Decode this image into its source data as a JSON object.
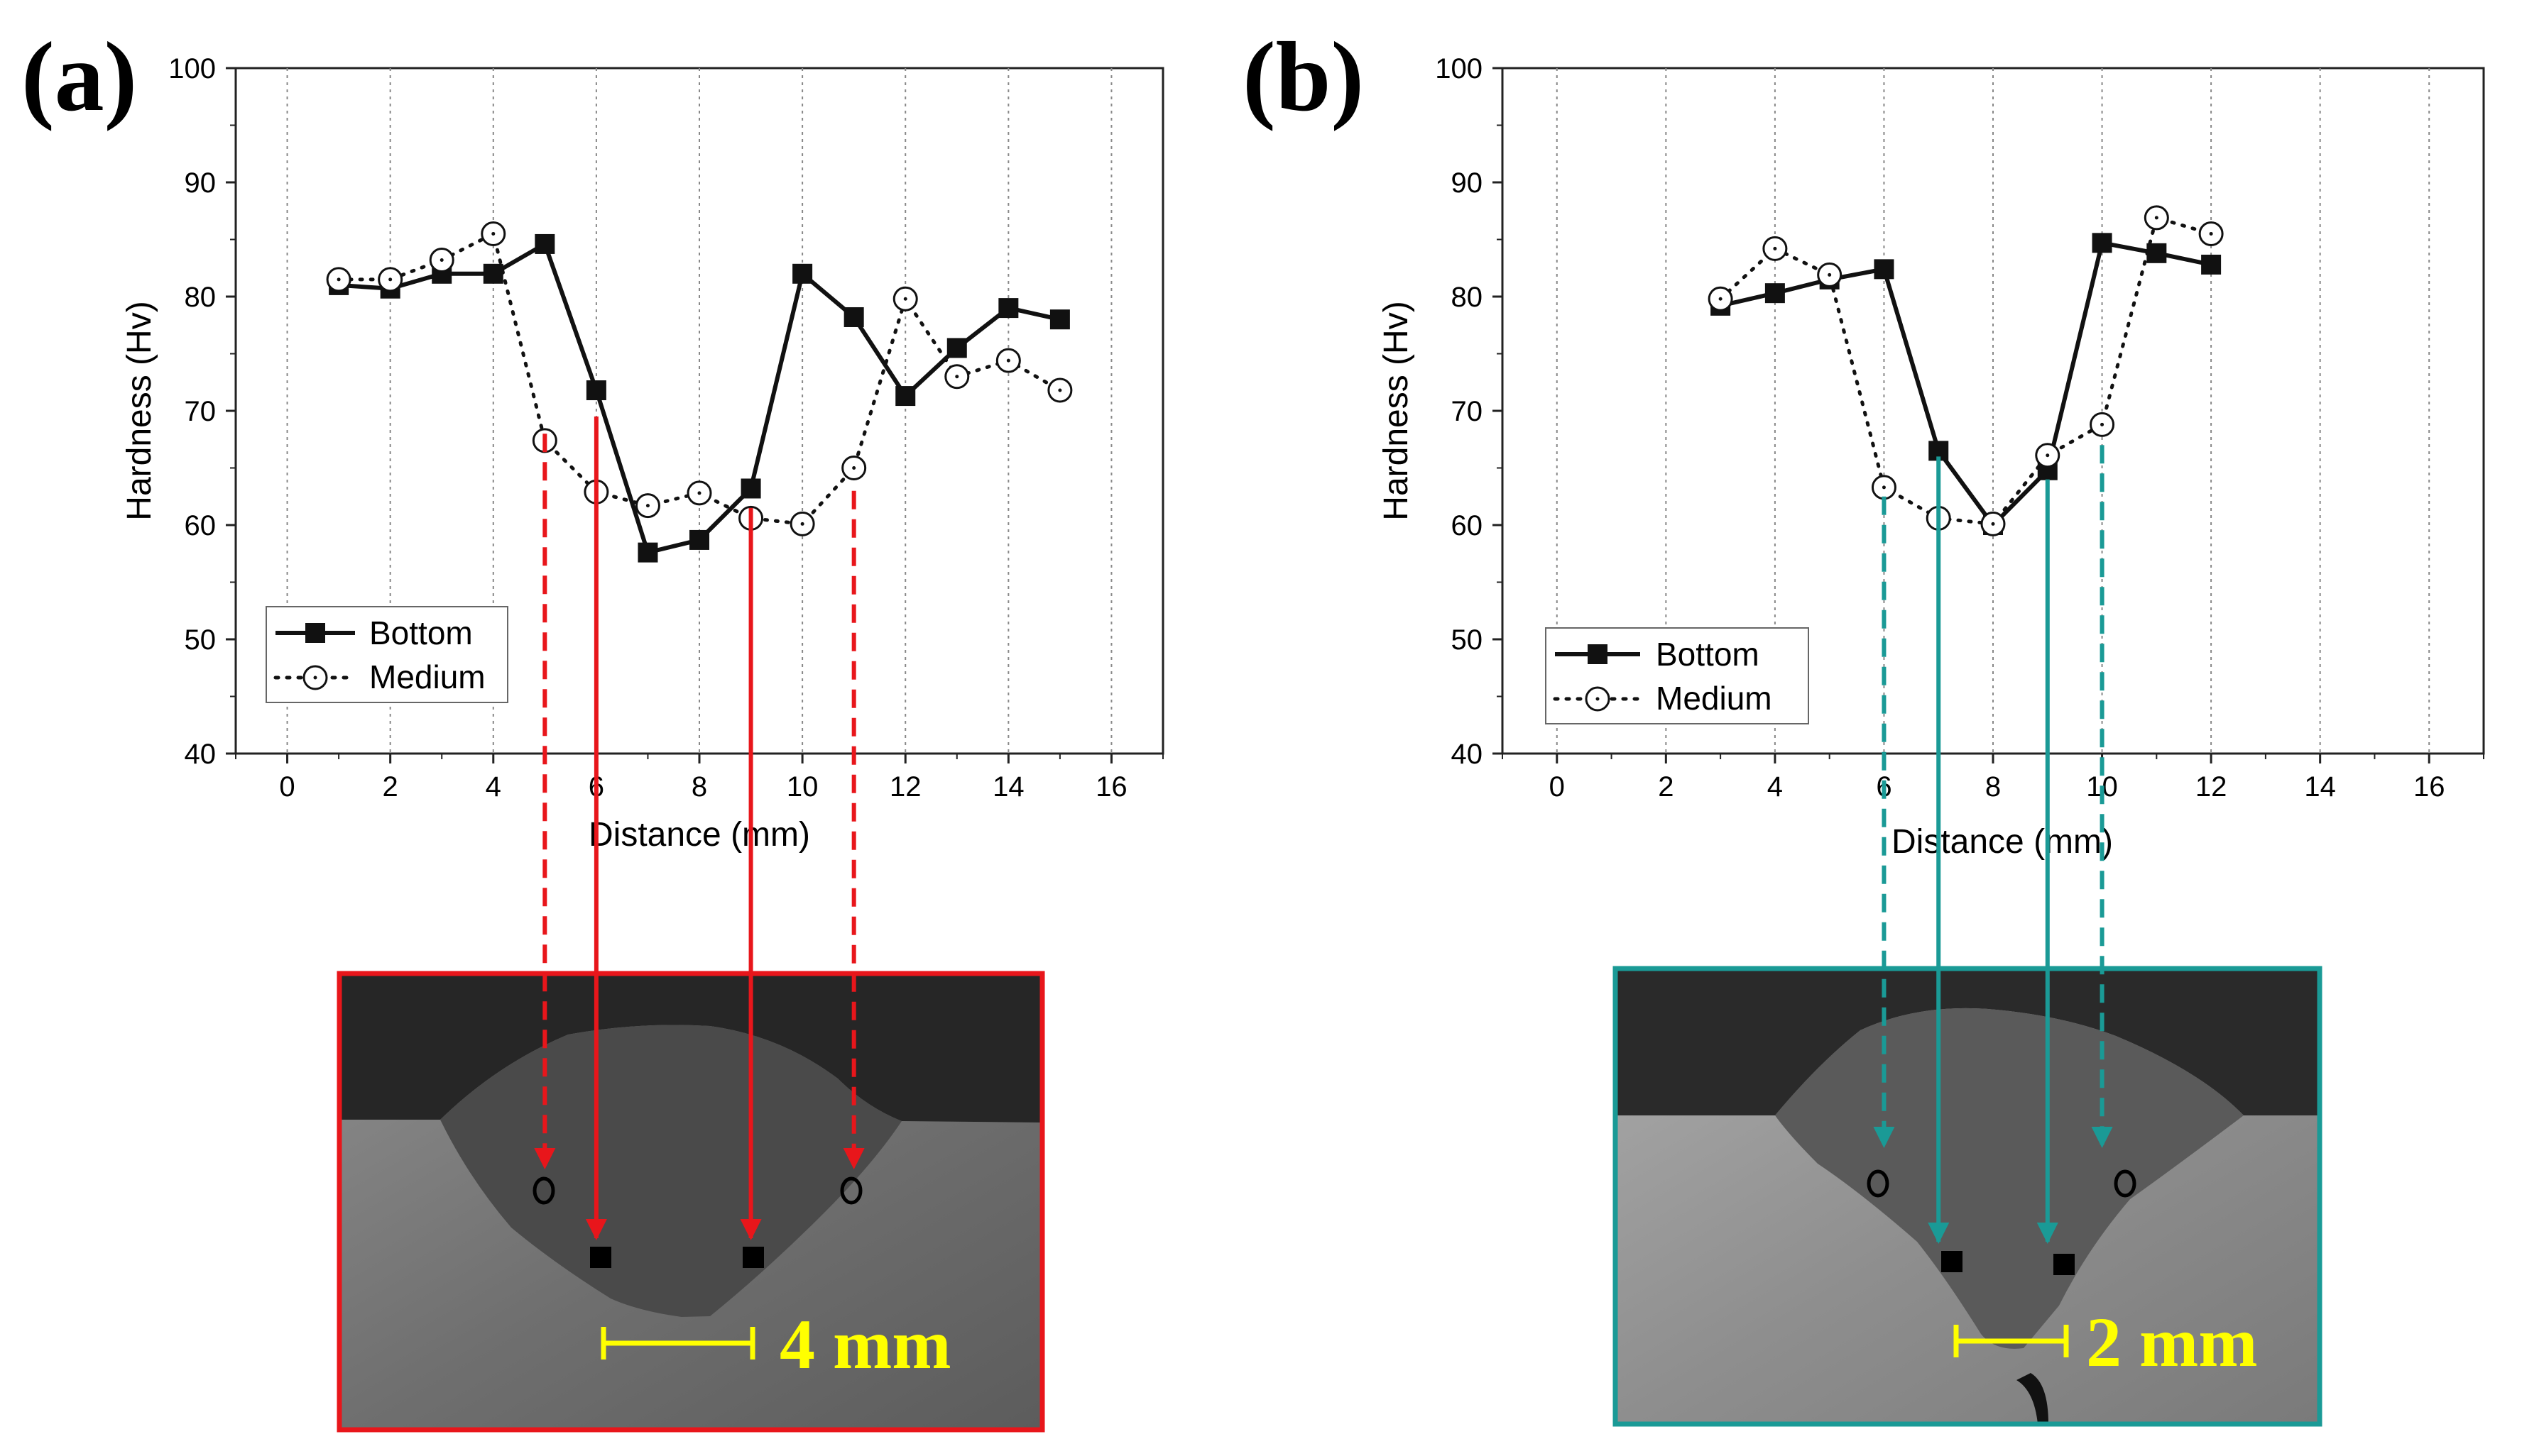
{
  "chart_data": [
    {
      "type": "line",
      "panel_label": "(a)",
      "xlabel": "Distance (mm)",
      "ylabel": "Hardness (Hv)",
      "xlim": [
        -1,
        17
      ],
      "ylim": [
        40,
        100
      ],
      "x_ticks": [
        0,
        2,
        4,
        6,
        8,
        10,
        12,
        14,
        16
      ],
      "y_ticks": [
        40,
        50,
        60,
        70,
        80,
        90,
        100
      ],
      "grid": "vertical dotted",
      "legend": {
        "placement": "bottom-left",
        "entries": [
          "Bottom",
          "Medium"
        ]
      },
      "series": [
        {
          "name": "Bottom",
          "marker": "filled-square",
          "line": "solid",
          "x": [
            1,
            2,
            3,
            4,
            5,
            6,
            7,
            8,
            9,
            10,
            11,
            12,
            13,
            14,
            15
          ],
          "y": [
            81.0,
            80.7,
            82.0,
            82.0,
            84.6,
            71.8,
            57.6,
            58.7,
            63.2,
            82.0,
            78.2,
            71.3,
            75.5,
            79.0,
            78.0
          ]
        },
        {
          "name": "Medium",
          "marker": "open-circle",
          "line": "dotted",
          "x": [
            1,
            2,
            3,
            4,
            5,
            6,
            7,
            8,
            9,
            10,
            11,
            12,
            13,
            14,
            15
          ],
          "y": [
            81.5,
            81.5,
            83.2,
            85.5,
            67.4,
            62.9,
            61.7,
            62.8,
            60.6,
            60.1,
            65.0,
            79.8,
            73.0,
            74.4,
            71.8
          ]
        }
      ],
      "arrows": [
        {
          "x": 5,
          "from_y": 68,
          "style": "dashed",
          "target": "circle"
        },
        {
          "x": 6,
          "from_y": 69.5,
          "style": "solid",
          "target": "square"
        },
        {
          "x": 9,
          "from_y": 61.5,
          "style": "solid",
          "target": "square"
        },
        {
          "x": 11,
          "from_y": 63,
          "style": "dashed",
          "target": "circle"
        }
      ],
      "micrograph": {
        "frame_color": "#e8161b",
        "scale_label": "4 mm"
      }
    },
    {
      "type": "line",
      "panel_label": "(b)",
      "xlabel": "Distance (mm)",
      "ylabel": "Hardness (Hv)",
      "xlim": [
        -1,
        17
      ],
      "ylim": [
        40,
        100
      ],
      "x_ticks": [
        0,
        2,
        4,
        6,
        8,
        10,
        12,
        14,
        16
      ],
      "y_ticks": [
        40,
        50,
        60,
        70,
        80,
        90,
        100
      ],
      "grid": "vertical dotted",
      "legend": {
        "placement": "bottom-left",
        "entries": [
          "Bottom",
          "Medium"
        ]
      },
      "series": [
        {
          "name": "Bottom",
          "marker": "filled-square",
          "line": "solid",
          "x": [
            3,
            4,
            5,
            6,
            7,
            8,
            9,
            10,
            11,
            12
          ],
          "y": [
            79.2,
            80.3,
            81.5,
            82.4,
            66.5,
            60.0,
            64.8,
            84.7,
            83.8,
            82.8
          ]
        },
        {
          "name": "Medium",
          "marker": "open-circle",
          "line": "dotted",
          "x": [
            3,
            4,
            5,
            6,
            7,
            8,
            9,
            10,
            11,
            12
          ],
          "y": [
            79.8,
            84.2,
            81.9,
            63.3,
            60.6,
            60.1,
            66.1,
            68.8,
            86.9,
            85.5
          ]
        }
      ],
      "arrows": [
        {
          "x": 6,
          "from_y": 62.5,
          "style": "dashed",
          "target": "circle"
        },
        {
          "x": 7,
          "from_y": 66,
          "style": "solid",
          "target": "square"
        },
        {
          "x": 9,
          "from_y": 64,
          "style": "solid",
          "target": "square"
        },
        {
          "x": 10,
          "from_y": 67,
          "style": "dashed",
          "target": "circle"
        }
      ],
      "micrograph": {
        "frame_color": "#1a9a96",
        "scale_label": "2 mm"
      }
    }
  ]
}
